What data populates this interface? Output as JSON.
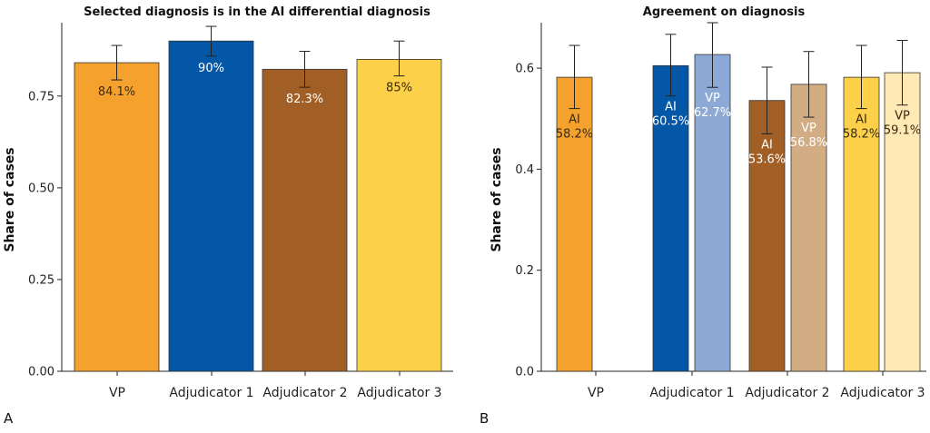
{
  "chart_data": [
    {
      "type": "bar",
      "panel_label": "A",
      "title": "Selected diagnosis is in the AI differential diagnosis",
      "ylabel": "Share of cases",
      "xlabel": "",
      "ylim": [
        0,
        0.95
      ],
      "yticks": [
        "0.00",
        "0.25",
        "0.50",
        "0.75"
      ],
      "ytick_values": [
        0,
        0.25,
        0.5,
        0.75
      ],
      "grid": false,
      "categories": [
        "VP",
        "Adjudicator 1",
        "Adjudicator 2",
        "Adjudicator 3"
      ],
      "bars": [
        {
          "category": "VP",
          "value": 0.841,
          "err_low": 0.794,
          "err_high": 0.888,
          "label": "84.1%",
          "color": "#F5A12D",
          "label_color": "#3a2a10"
        },
        {
          "category": "Adjudicator 1",
          "value": 0.9,
          "err_low": 0.859,
          "err_high": 0.94,
          "label": "90%",
          "color": "#0457A6",
          "label_color": "#ffffff"
        },
        {
          "category": "Adjudicator 2",
          "value": 0.823,
          "err_low": 0.774,
          "err_high": 0.872,
          "label": "82.3%",
          "color": "#A15F25",
          "label_color": "#ffffff"
        },
        {
          "category": "Adjudicator 3",
          "value": 0.85,
          "err_low": 0.805,
          "err_high": 0.9,
          "label": "85%",
          "color": "#FDD04A",
          "label_color": "#3a2a10"
        }
      ]
    },
    {
      "type": "bar",
      "panel_label": "B",
      "title": "Agreement on diagnosis",
      "ylabel": "Share of cases",
      "xlabel": "",
      "ylim": [
        0,
        0.69
      ],
      "yticks": [
        "0.0",
        "0.2",
        "0.4",
        "0.6"
      ],
      "ytick_values": [
        0,
        0.2,
        0.4,
        0.6
      ],
      "grid": false,
      "categories": [
        "VP",
        "Adjudicator 1",
        "Adjudicator 2",
        "Adjudicator 3"
      ],
      "bars": [
        {
          "category": "VP",
          "series": "AI",
          "value": 0.582,
          "err_low": 0.52,
          "err_high": 0.645,
          "label_series": "AI",
          "label_value": "58.2%",
          "color": "#F5A12D",
          "label_color": "#3a2a10"
        },
        {
          "category": "Adjudicator 1",
          "series": "AI",
          "value": 0.605,
          "err_low": 0.545,
          "err_high": 0.667,
          "label_series": "AI",
          "label_value": "60.5%",
          "color": "#0457A6",
          "label_color": "#ffffff"
        },
        {
          "category": "Adjudicator 1",
          "series": "VP",
          "value": 0.627,
          "err_low": 0.562,
          "err_high": 0.69,
          "label_series": "VP",
          "label_value": "62.7%",
          "color": "#8DA9D6",
          "label_color": "#ffffff"
        },
        {
          "category": "Adjudicator 2",
          "series": "AI",
          "value": 0.536,
          "err_low": 0.47,
          "err_high": 0.602,
          "label_series": "AI",
          "label_value": "53.6%",
          "color": "#A15F25",
          "label_color": "#ffffff"
        },
        {
          "category": "Adjudicator 2",
          "series": "VP",
          "value": 0.568,
          "err_low": 0.503,
          "err_high": 0.633,
          "label_series": "VP",
          "label_value": "56.8%",
          "color": "#D2AD84",
          "label_color": "#ffffff"
        },
        {
          "category": "Adjudicator 3",
          "series": "AI",
          "value": 0.582,
          "err_low": 0.52,
          "err_high": 0.645,
          "label_series": "AI",
          "label_value": "58.2%",
          "color": "#FDD04A",
          "label_color": "#3a2a10"
        },
        {
          "category": "Adjudicator 3",
          "series": "VP",
          "value": 0.591,
          "err_low": 0.527,
          "err_high": 0.655,
          "label_series": "VP",
          "label_value": "59.1%",
          "color": "#FEE8B3",
          "label_color": "#3a2a10"
        }
      ]
    }
  ]
}
